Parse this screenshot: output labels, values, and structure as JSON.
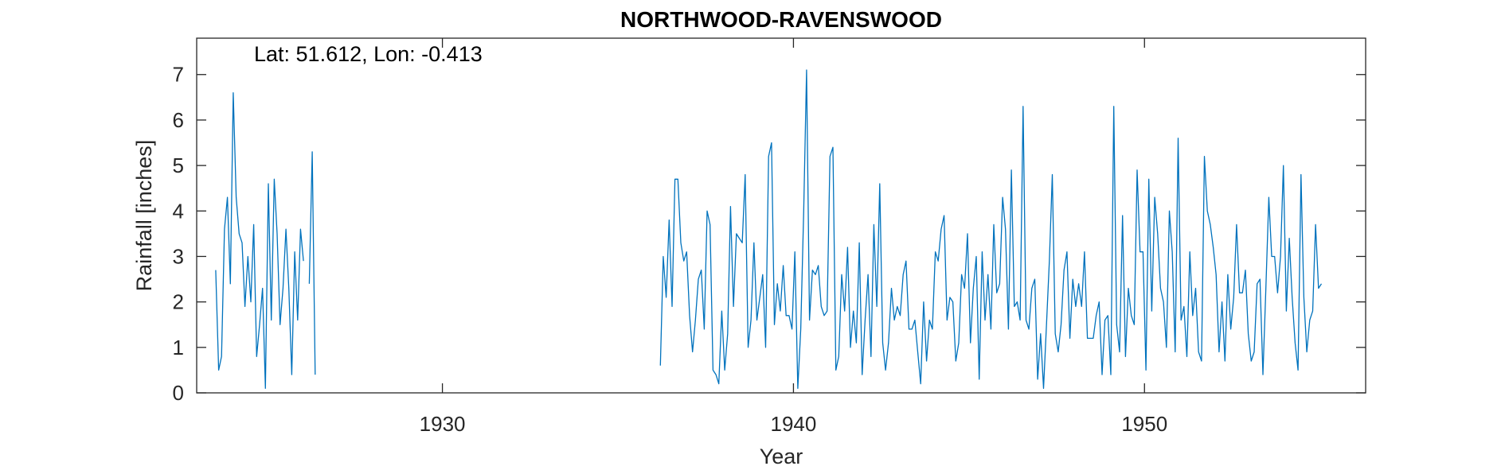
{
  "chart_data": {
    "type": "line",
    "title": "NORTHWOOD-RAVENSWOOD",
    "xlabel": "Year",
    "ylabel": "Rainfall [inches]",
    "annotation": "Lat: 51.612, Lon: -0.413",
    "xlim": [
      1923.0,
      1956.3
    ],
    "ylim": [
      0,
      7.8
    ],
    "xticks": [
      1930,
      1940,
      1950
    ],
    "xtick_labels": [
      "1930",
      "1940",
      "1950"
    ],
    "yticks": [
      0,
      1,
      2,
      3,
      4,
      5,
      6,
      7
    ],
    "ytick_labels": [
      "0",
      "1",
      "2",
      "3",
      "4",
      "5",
      "6",
      "7"
    ],
    "grid": false,
    "box": true,
    "series": [
      {
        "color": "#0072BD",
        "segments": [
          {
            "x_start": 1923.542,
            "step": 0.08333,
            "values": [
              2.7,
              0.5,
              0.8,
              3.6,
              4.3,
              2.4,
              6.6,
              4.3,
              3.5,
              3.3,
              1.9,
              3.0,
              2.0,
              3.7,
              0.8,
              1.5,
              2.3,
              0.1,
              4.6,
              1.6,
              4.7,
              3.5,
              1.5,
              2.3,
              3.6,
              2.3,
              0.4,
              3.1,
              1.6,
              3.6,
              2.9,
              null,
              2.4,
              5.3,
              0.4
            ]
          },
          {
            "x_start": 1936.208,
            "step": 0.08333,
            "values": [
              0.6,
              3.0,
              2.1,
              3.8,
              1.9,
              4.7,
              4.7,
              3.3,
              2.9,
              3.1,
              1.7,
              0.9,
              1.6,
              2.5,
              2.7,
              1.4,
              4.0,
              3.7,
              0.5,
              0.4,
              0.2,
              1.8,
              0.5,
              1.3,
              4.1,
              1.9,
              3.5,
              3.4,
              3.3,
              4.8,
              1.0,
              1.6,
              3.3,
              1.6,
              2.1,
              2.6,
              1.0,
              5.2,
              5.5,
              1.5,
              2.4,
              1.8,
              2.8,
              1.7,
              1.7,
              1.4,
              3.1,
              0.1,
              1.4,
              4.0,
              7.1,
              1.6,
              2.7,
              2.6,
              2.8,
              1.9,
              1.7,
              1.8,
              5.2,
              5.4,
              0.5,
              0.8,
              2.6,
              1.8,
              3.2,
              1.0,
              1.8,
              1.1,
              3.3,
              0.4,
              1.6,
              2.6,
              0.8,
              3.7,
              1.9,
              4.6,
              1.1,
              0.5,
              1.1,
              2.3,
              1.6,
              1.9,
              1.7,
              2.6,
              2.9,
              1.4,
              1.4,
              1.6,
              0.9,
              0.2,
              2.0,
              0.7,
              1.6,
              1.4,
              3.1,
              2.9,
              3.6,
              3.9,
              1.6,
              2.1,
              2.0,
              0.7,
              1.1,
              2.6,
              2.3,
              3.5,
              1.1,
              2.3,
              3.0,
              0.3,
              3.1,
              1.6,
              2.6,
              1.4,
              3.7,
              2.2,
              2.4,
              4.3,
              3.6,
              1.4,
              4.9,
              1.9,
              2.0,
              1.6,
              6.3,
              1.6,
              1.4,
              2.3,
              2.5,
              0.3,
              1.3,
              0.1,
              1.5,
              2.9,
              4.8,
              1.3,
              0.9,
              1.5,
              2.7,
              3.1,
              1.2,
              2.5,
              1.9,
              2.4,
              1.9,
              3.1,
              1.2,
              1.2,
              1.2,
              1.7,
              2.0,
              0.4,
              1.6,
              1.7,
              0.4,
              6.3,
              1.5,
              0.9,
              3.9,
              0.8,
              2.3,
              1.7,
              1.5,
              4.9,
              3.1,
              3.1,
              0.5,
              4.7,
              1.8,
              4.3,
              3.5,
              2.3,
              2.0,
              1.0,
              4.0,
              3.1,
              0.9,
              5.6,
              1.6,
              1.9,
              0.8,
              3.1,
              1.7,
              2.3,
              0.9,
              0.7,
              5.2,
              4.0,
              3.7,
              3.2,
              2.6,
              0.9,
              2.0,
              0.7,
              2.6,
              1.4,
              2.1,
              3.7,
              2.2,
              2.2,
              2.7,
              1.3,
              0.7,
              0.9,
              2.4,
              2.5,
              0.4,
              2.3,
              4.3,
              3.0,
              3.0,
              2.2,
              3.0,
              5.0,
              1.8,
              3.4,
              2.1,
              1.1,
              0.5,
              4.8,
              2.1,
              0.9,
              1.6,
              1.8,
              3.7,
              2.3,
              2.4
            ]
          }
        ]
      }
    ]
  }
}
